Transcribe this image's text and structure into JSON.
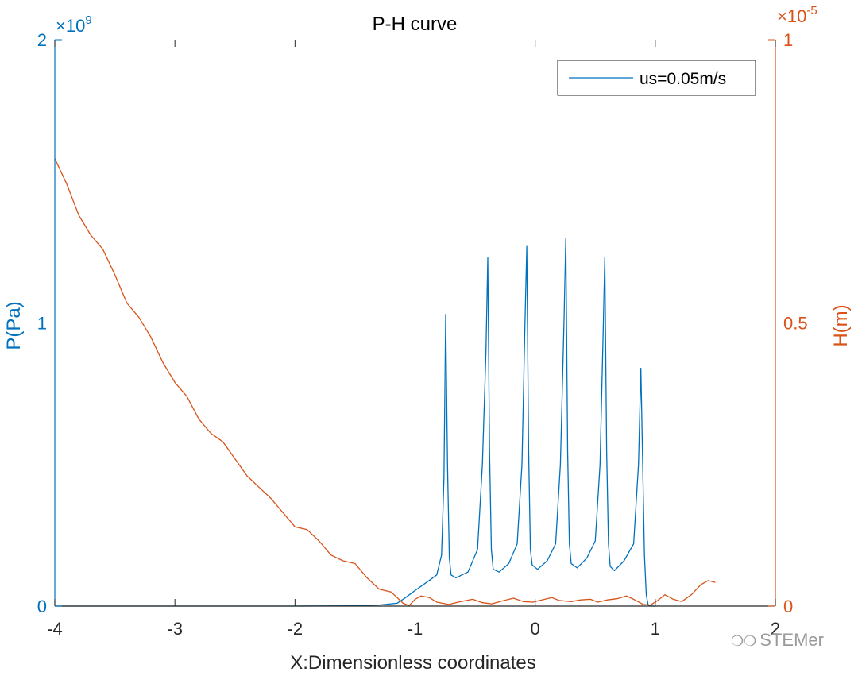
{
  "chart_data": {
    "type": "line",
    "title": "P-H curve",
    "xlabel": "X:Dimensionless coordinates",
    "ylabel_left": "P(Pa)",
    "ylabel_right": "H(m)",
    "xlim": [
      -4,
      2
    ],
    "ylim_left": [
      0,
      2
    ],
    "ylim_right": [
      0,
      1
    ],
    "left_exponent_label": "×10",
    "left_exponent_power": "9",
    "right_exponent_label": "×10",
    "right_exponent_power": "-5",
    "x_ticks": [
      -4,
      -3,
      -2,
      -1,
      0,
      1,
      2
    ],
    "x_tick_labels": [
      "-4",
      "-3",
      "-2",
      "-1",
      "0",
      "1",
      "2"
    ],
    "y_left_ticks": [
      0,
      1,
      2
    ],
    "y_left_tick_labels": [
      "0",
      "1",
      "2"
    ],
    "y_right_ticks": [
      0,
      0.5,
      1
    ],
    "y_right_tick_labels": [
      "0",
      "0.5",
      "1"
    ],
    "grid": false,
    "legend": {
      "position": "top-right",
      "entries": [
        "us=0.05m/s"
      ]
    },
    "colors": {
      "pressure": "#0072BD",
      "film": "#D95319",
      "axis": "#262626"
    },
    "series": [
      {
        "name": "us=0.05m/s",
        "axis": "left",
        "note": "values in units of 1e9 Pa",
        "points": [
          [
            -4.0,
            0
          ],
          [
            -2.0,
            0
          ],
          [
            -1.6,
            0.001
          ],
          [
            -1.3,
            0.004
          ],
          [
            -1.15,
            0.01
          ],
          [
            -1.08,
            0.03
          ],
          [
            -1.0,
            0.055
          ],
          [
            -0.9,
            0.085
          ],
          [
            -0.82,
            0.11
          ],
          [
            -0.78,
            0.18
          ],
          [
            -0.76,
            0.45
          ],
          [
            -0.745,
            1.03
          ],
          [
            -0.73,
            0.5
          ],
          [
            -0.715,
            0.17
          ],
          [
            -0.7,
            0.11
          ],
          [
            -0.66,
            0.1
          ],
          [
            -0.56,
            0.12
          ],
          [
            -0.48,
            0.2
          ],
          [
            -0.44,
            0.5
          ],
          [
            -0.41,
            0.9
          ],
          [
            -0.395,
            1.23
          ],
          [
            -0.38,
            0.55
          ],
          [
            -0.365,
            0.2
          ],
          [
            -0.35,
            0.13
          ],
          [
            -0.3,
            0.12
          ],
          [
            -0.22,
            0.15
          ],
          [
            -0.15,
            0.22
          ],
          [
            -0.11,
            0.5
          ],
          [
            -0.085,
            1.0
          ],
          [
            -0.07,
            1.27
          ],
          [
            -0.055,
            0.55
          ],
          [
            -0.04,
            0.2
          ],
          [
            -0.025,
            0.145
          ],
          [
            0.02,
            0.13
          ],
          [
            0.1,
            0.16
          ],
          [
            0.17,
            0.22
          ],
          [
            0.21,
            0.5
          ],
          [
            0.24,
            1.0
          ],
          [
            0.255,
            1.3
          ],
          [
            0.27,
            0.55
          ],
          [
            0.285,
            0.22
          ],
          [
            0.3,
            0.15
          ],
          [
            0.35,
            0.135
          ],
          [
            0.43,
            0.17
          ],
          [
            0.5,
            0.23
          ],
          [
            0.54,
            0.5
          ],
          [
            0.565,
            0.95
          ],
          [
            0.58,
            1.23
          ],
          [
            0.595,
            0.55
          ],
          [
            0.61,
            0.22
          ],
          [
            0.625,
            0.14
          ],
          [
            0.66,
            0.125
          ],
          [
            0.74,
            0.16
          ],
          [
            0.82,
            0.22
          ],
          [
            0.86,
            0.5
          ],
          [
            0.88,
            0.84
          ],
          [
            0.895,
            0.5
          ],
          [
            0.91,
            0.18
          ],
          [
            0.925,
            0.04
          ],
          [
            0.94,
            0.005
          ],
          [
            0.96,
            0
          ],
          [
            1.0,
            0
          ]
        ]
      },
      {
        "name": "H",
        "axis": "right",
        "note": "values in units of 1e-5 m",
        "points": [
          [
            -4.0,
            0.79
          ],
          [
            -3.9,
            0.745
          ],
          [
            -3.8,
            0.69
          ],
          [
            -3.7,
            0.655
          ],
          [
            -3.6,
            0.63
          ],
          [
            -3.5,
            0.585
          ],
          [
            -3.4,
            0.535
          ],
          [
            -3.3,
            0.51
          ],
          [
            -3.2,
            0.475
          ],
          [
            -3.1,
            0.43
          ],
          [
            -3.0,
            0.395
          ],
          [
            -2.9,
            0.37
          ],
          [
            -2.8,
            0.33
          ],
          [
            -2.7,
            0.305
          ],
          [
            -2.6,
            0.29
          ],
          [
            -2.5,
            0.26
          ],
          [
            -2.4,
            0.23
          ],
          [
            -2.3,
            0.21
          ],
          [
            -2.2,
            0.19
          ],
          [
            -2.1,
            0.165
          ],
          [
            -2.0,
            0.14
          ],
          [
            -1.9,
            0.135
          ],
          [
            -1.8,
            0.115
          ],
          [
            -1.7,
            0.09
          ],
          [
            -1.6,
            0.08
          ],
          [
            -1.5,
            0.075
          ],
          [
            -1.4,
            0.05
          ],
          [
            -1.3,
            0.03
          ],
          [
            -1.2,
            0.025
          ],
          [
            -1.1,
            0.005
          ],
          [
            -1.05,
            0.001
          ],
          [
            -1.0,
            0.012
          ],
          [
            -0.95,
            0.018
          ],
          [
            -0.88,
            0.015
          ],
          [
            -0.82,
            0.007
          ],
          [
            -0.72,
            0.003
          ],
          [
            -0.62,
            0.008
          ],
          [
            -0.52,
            0.012
          ],
          [
            -0.44,
            0.006
          ],
          [
            -0.36,
            0.004
          ],
          [
            -0.26,
            0.01
          ],
          [
            -0.18,
            0.014
          ],
          [
            -0.1,
            0.008
          ],
          [
            -0.02,
            0.007
          ],
          [
            0.08,
            0.012
          ],
          [
            0.14,
            0.015
          ],
          [
            0.2,
            0.01
          ],
          [
            0.3,
            0.008
          ],
          [
            0.38,
            0.011
          ],
          [
            0.46,
            0.012
          ],
          [
            0.52,
            0.007
          ],
          [
            0.6,
            0.011
          ],
          [
            0.68,
            0.013
          ],
          [
            0.76,
            0.018
          ],
          [
            0.82,
            0.012
          ],
          [
            0.9,
            0.003
          ],
          [
            0.96,
            0.002
          ],
          [
            1.02,
            0.01
          ],
          [
            1.08,
            0.02
          ],
          [
            1.15,
            0.012
          ],
          [
            1.22,
            0.008
          ],
          [
            1.3,
            0.02
          ],
          [
            1.38,
            0.038
          ],
          [
            1.44,
            0.045
          ],
          [
            1.5,
            0.042
          ]
        ]
      }
    ]
  },
  "watermark": {
    "icon": "wechat-icon",
    "text": "STEMer"
  }
}
